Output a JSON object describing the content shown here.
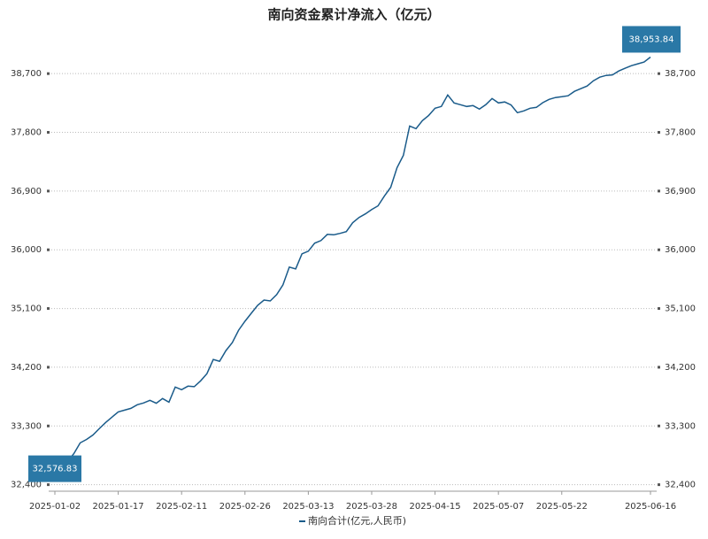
{
  "chart_data": {
    "type": "line",
    "title": "南向资金累计净流入（亿元）",
    "categories": [
      "2025-01-02",
      null,
      null,
      null,
      null,
      null,
      null,
      null,
      null,
      null,
      "2025-01-17",
      null,
      null,
      null,
      null,
      null,
      null,
      null,
      null,
      null,
      "2025-02-11",
      null,
      null,
      null,
      null,
      null,
      null,
      null,
      null,
      null,
      "2025-02-26",
      null,
      null,
      null,
      null,
      null,
      null,
      null,
      null,
      null,
      "2025-03-13",
      null,
      null,
      null,
      null,
      null,
      null,
      null,
      null,
      null,
      "2025-03-28",
      null,
      null,
      null,
      null,
      null,
      null,
      null,
      null,
      null,
      "2025-04-15",
      null,
      null,
      null,
      null,
      null,
      null,
      null,
      null,
      null,
      "2025-05-07",
      null,
      null,
      null,
      null,
      null,
      null,
      null,
      null,
      null,
      "2025-05-22",
      null,
      null,
      null,
      null,
      null,
      null,
      null,
      null,
      null,
      null,
      null,
      null,
      null,
      "2025-06-16"
    ],
    "series": [
      {
        "name": "南向合计(亿元,人民币)",
        "color": "#1a5b8a",
        "values": [
          32576.83,
          32658,
          32754,
          32876,
          33040,
          33094,
          33162,
          33257,
          33352,
          33434,
          33516,
          33543,
          33570,
          33625,
          33652,
          33693,
          33648,
          33720,
          33665,
          33897,
          33856,
          33910,
          33902,
          33992,
          34101,
          34319,
          34291,
          34455,
          34577,
          34768,
          34904,
          35026,
          35149,
          35230,
          35216,
          35312,
          35462,
          35734,
          35707,
          35938,
          35979,
          36101,
          36142,
          36237,
          36230,
          36251,
          36278,
          36414,
          36496,
          36550,
          36618,
          36673,
          36822,
          36958,
          37258,
          37448,
          37897,
          37856,
          37979,
          38060,
          38169,
          38197,
          38373,
          38251,
          38224,
          38197,
          38210,
          38156,
          38224,
          38319,
          38251,
          38265,
          38220,
          38101,
          38129,
          38169,
          38183,
          38255,
          38305,
          38333,
          38346,
          38360,
          38428,
          38469,
          38510,
          38591,
          38646,
          38673,
          38680,
          38741,
          38782,
          38822,
          38850,
          38877,
          38953.84
        ],
        "value_labels": [
          "32,576.83",
          null,
          null,
          null,
          null,
          null,
          null,
          null,
          null,
          null,
          null,
          null,
          null,
          null,
          null,
          null,
          null,
          null,
          null,
          null,
          null,
          null,
          null,
          null,
          null,
          null,
          null,
          null,
          null,
          null,
          null,
          null,
          null,
          null,
          null,
          null,
          null,
          null,
          null,
          null,
          null,
          null,
          null,
          null,
          null,
          null,
          null,
          null,
          null,
          null,
          null,
          null,
          null,
          null,
          null,
          null,
          null,
          null,
          null,
          null,
          null,
          null,
          null,
          null,
          null,
          null,
          null,
          null,
          null,
          null,
          null,
          null,
          null,
          null,
          null,
          null,
          null,
          null,
          null,
          null,
          null,
          null,
          null,
          null,
          null,
          null,
          null,
          null,
          null,
          null,
          null,
          null,
          null,
          null,
          "38,953.84"
        ]
      }
    ],
    "ylim": [
      32300,
      39150
    ],
    "yticks": [
      {
        "value": 32400,
        "label": "32,400"
      },
      {
        "value": 33300,
        "label": "33,300"
      },
      {
        "value": 34200,
        "label": "34,200"
      },
      {
        "value": 35100,
        "label": "35,100"
      },
      {
        "value": 36000,
        "label": "36,000"
      },
      {
        "value": 36900,
        "label": "36,900"
      },
      {
        "value": 37800,
        "label": "37,800"
      },
      {
        "value": 38700,
        "label": "38,700"
      }
    ],
    "grid": true,
    "label_color": "#2a78a6",
    "legend": "bottom"
  }
}
